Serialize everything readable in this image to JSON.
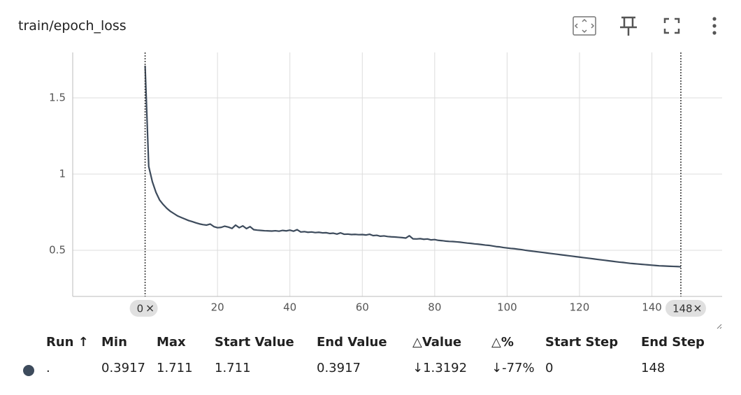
{
  "header": {
    "title": "train/epoch_loss"
  },
  "chart_data": {
    "type": "line",
    "color": "#3d4b5c",
    "x": [
      0,
      1,
      2,
      3,
      4,
      5,
      6,
      7,
      8,
      9,
      10,
      11,
      12,
      13,
      14,
      15,
      16,
      17,
      18,
      19,
      20,
      21,
      22,
      23,
      24,
      25,
      26,
      27,
      28,
      29,
      30,
      31,
      32,
      33,
      34,
      35,
      36,
      37,
      38,
      39,
      40,
      41,
      42,
      43,
      44,
      45,
      46,
      47,
      48,
      49,
      50,
      51,
      52,
      53,
      54,
      55,
      56,
      57,
      58,
      59,
      60,
      61,
      62,
      63,
      64,
      65,
      66,
      67,
      68,
      69,
      70,
      71,
      72,
      73,
      74,
      75,
      76,
      77,
      78,
      79,
      80,
      81,
      82,
      83,
      84,
      85,
      86,
      87,
      88,
      89,
      90,
      91,
      92,
      93,
      94,
      95,
      96,
      97,
      98,
      99,
      100,
      101,
      102,
      103,
      104,
      105,
      106,
      107,
      108,
      109,
      110,
      111,
      112,
      113,
      114,
      115,
      116,
      117,
      118,
      119,
      120,
      121,
      122,
      123,
      124,
      125,
      126,
      127,
      128,
      129,
      130,
      131,
      132,
      133,
      134,
      135,
      136,
      137,
      138,
      139,
      140,
      141,
      142,
      143,
      144,
      145,
      146,
      147,
      148
    ],
    "values": [
      1.711,
      1.05,
      0.95,
      0.88,
      0.83,
      0.8,
      0.775,
      0.755,
      0.74,
      0.725,
      0.715,
      0.705,
      0.695,
      0.688,
      0.68,
      0.673,
      0.668,
      0.665,
      0.672,
      0.655,
      0.648,
      0.65,
      0.658,
      0.652,
      0.643,
      0.665,
      0.648,
      0.66,
      0.642,
      0.655,
      0.635,
      0.632,
      0.63,
      0.628,
      0.627,
      0.626,
      0.628,
      0.625,
      0.63,
      0.627,
      0.632,
      0.625,
      0.635,
      0.62,
      0.622,
      0.618,
      0.62,
      0.616,
      0.618,
      0.614,
      0.615,
      0.61,
      0.612,
      0.606,
      0.614,
      0.605,
      0.606,
      0.603,
      0.604,
      0.602,
      0.603,
      0.6,
      0.605,
      0.596,
      0.598,
      0.592,
      0.594,
      0.59,
      0.588,
      0.587,
      0.585,
      0.583,
      0.58,
      0.595,
      0.575,
      0.574,
      0.576,
      0.572,
      0.574,
      0.568,
      0.57,
      0.565,
      0.563,
      0.56,
      0.558,
      0.557,
      0.555,
      0.553,
      0.55,
      0.547,
      0.545,
      0.542,
      0.54,
      0.537,
      0.534,
      0.532,
      0.528,
      0.524,
      0.522,
      0.518,
      0.515,
      0.512,
      0.51,
      0.507,
      0.504,
      0.5,
      0.497,
      0.494,
      0.491,
      0.488,
      0.485,
      0.482,
      0.479,
      0.476,
      0.473,
      0.47,
      0.467,
      0.464,
      0.461,
      0.458,
      0.455,
      0.452,
      0.449,
      0.446,
      0.443,
      0.44,
      0.437,
      0.434,
      0.431,
      0.428,
      0.425,
      0.422,
      0.42,
      0.417,
      0.414,
      0.412,
      0.41,
      0.408,
      0.406,
      0.404,
      0.402,
      0.4,
      0.398,
      0.397,
      0.396,
      0.395,
      0.394,
      0.393,
      0.3917
    ],
    "xlim": [
      -20,
      159.4
    ],
    "ylim": [
      0.197,
      1.798
    ],
    "xticks": [
      20,
      40,
      60,
      80,
      100,
      120,
      140
    ],
    "yticks": [
      0.5,
      1,
      1.5
    ],
    "range_markers": [
      0,
      148
    ],
    "grid": true
  },
  "table": {
    "columns": [
      "Run ↑",
      "Min",
      "Max",
      "Start Value",
      "End Value",
      "△Value",
      "△%",
      "Start Step",
      "End Step"
    ],
    "rows": [
      [
        ".",
        "0.3917",
        "1.711",
        "1.711",
        "0.3917",
        "↓1.3192",
        "↓-77%",
        "0",
        "148"
      ]
    ]
  }
}
